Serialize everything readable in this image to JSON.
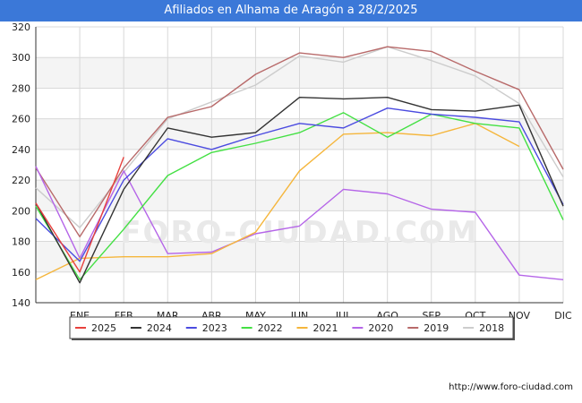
{
  "chart_data": {
    "type": "line",
    "title": "Afiliados en Alhama de Aragón a 28/2/2025",
    "categories": [
      "",
      "ENE",
      "FEB",
      "MAR",
      "ABR",
      "MAY",
      "JUN",
      "JUL",
      "AGO",
      "SEP",
      "OCT",
      "NOV",
      "DIC"
    ],
    "ylim": [
      140,
      320
    ],
    "yticks": [
      140,
      160,
      180,
      200,
      220,
      240,
      260,
      280,
      300,
      320
    ],
    "xlabel": "",
    "ylabel": "",
    "grid": true,
    "legend_position": "bottom",
    "watermark": "FORO-CIUDAD.COM",
    "series": [
      {
        "name": "2025",
        "color": "#e8413d",
        "values": [
          205,
          160,
          235,
          null,
          null,
          null,
          null,
          null,
          null,
          null,
          null,
          null,
          null
        ]
      },
      {
        "name": "2024",
        "color": "#333333",
        "values": [
          205,
          153,
          214,
          254,
          248,
          251,
          274,
          273,
          274,
          266,
          265,
          269,
          203
        ]
      },
      {
        "name": "2023",
        "color": "#4b4be0",
        "values": [
          195,
          167,
          220,
          247,
          240,
          249,
          257,
          254,
          267,
          263,
          261,
          258,
          204
        ]
      },
      {
        "name": "2022",
        "color": "#44e044",
        "values": [
          203,
          155,
          188,
          223,
          238,
          244,
          251,
          264,
          248,
          263,
          257,
          254,
          194
        ]
      },
      {
        "name": "2021",
        "color": "#f5b63c",
        "values": [
          155,
          169,
          170,
          170,
          172,
          186,
          226,
          250,
          251,
          249,
          257,
          242,
          null
        ]
      },
      {
        "name": "2020",
        "color": "#b565e8",
        "values": [
          229,
          169,
          226,
          172,
          173,
          185,
          190,
          214,
          211,
          201,
          199,
          158,
          155
        ]
      },
      {
        "name": "2019",
        "color": "#b86a6a",
        "values": [
          228,
          183,
          228,
          261,
          268,
          289,
          303,
          300,
          307,
          304,
          291,
          279,
          227
        ]
      },
      {
        "name": "2018",
        "color": "#cccccc",
        "values": [
          215,
          189,
          225,
          260,
          271,
          282,
          301,
          297,
          307,
          298,
          288,
          270,
          222
        ]
      }
    ]
  },
  "footer": {
    "url": "http://www.foro-ciudad.com"
  }
}
